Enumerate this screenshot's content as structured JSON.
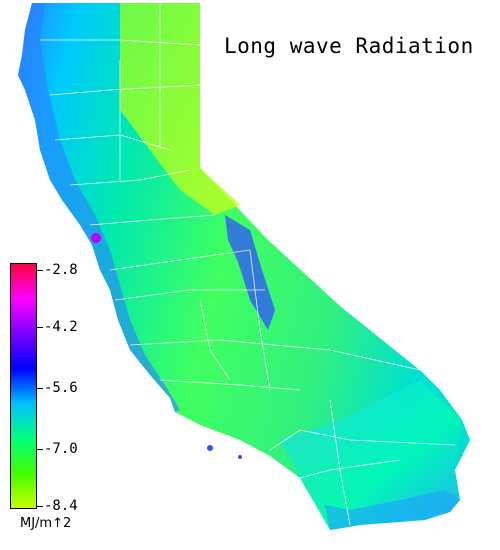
{
  "title": "Long wave Radiation",
  "legend": {
    "units": "MJ/m↑2",
    "ticks": [
      "-2.8",
      "-4.2",
      "-5.6",
      "-7.0",
      "-8.4"
    ],
    "colors": [
      "#ff0040",
      "#ff00ff",
      "#7a00ff",
      "#0000ff",
      "#00bfff",
      "#00ff80",
      "#40ff00",
      "#c8ff00"
    ]
  },
  "map": {
    "region": "California",
    "colors": {
      "coast": "#2a7fff",
      "inland": "#00e0b0",
      "valley": "#40ff40",
      "northeast": "#a0ff20",
      "mountains": "#3050ff",
      "desert": "#00ffc0",
      "borders": "#ffffff"
    }
  }
}
